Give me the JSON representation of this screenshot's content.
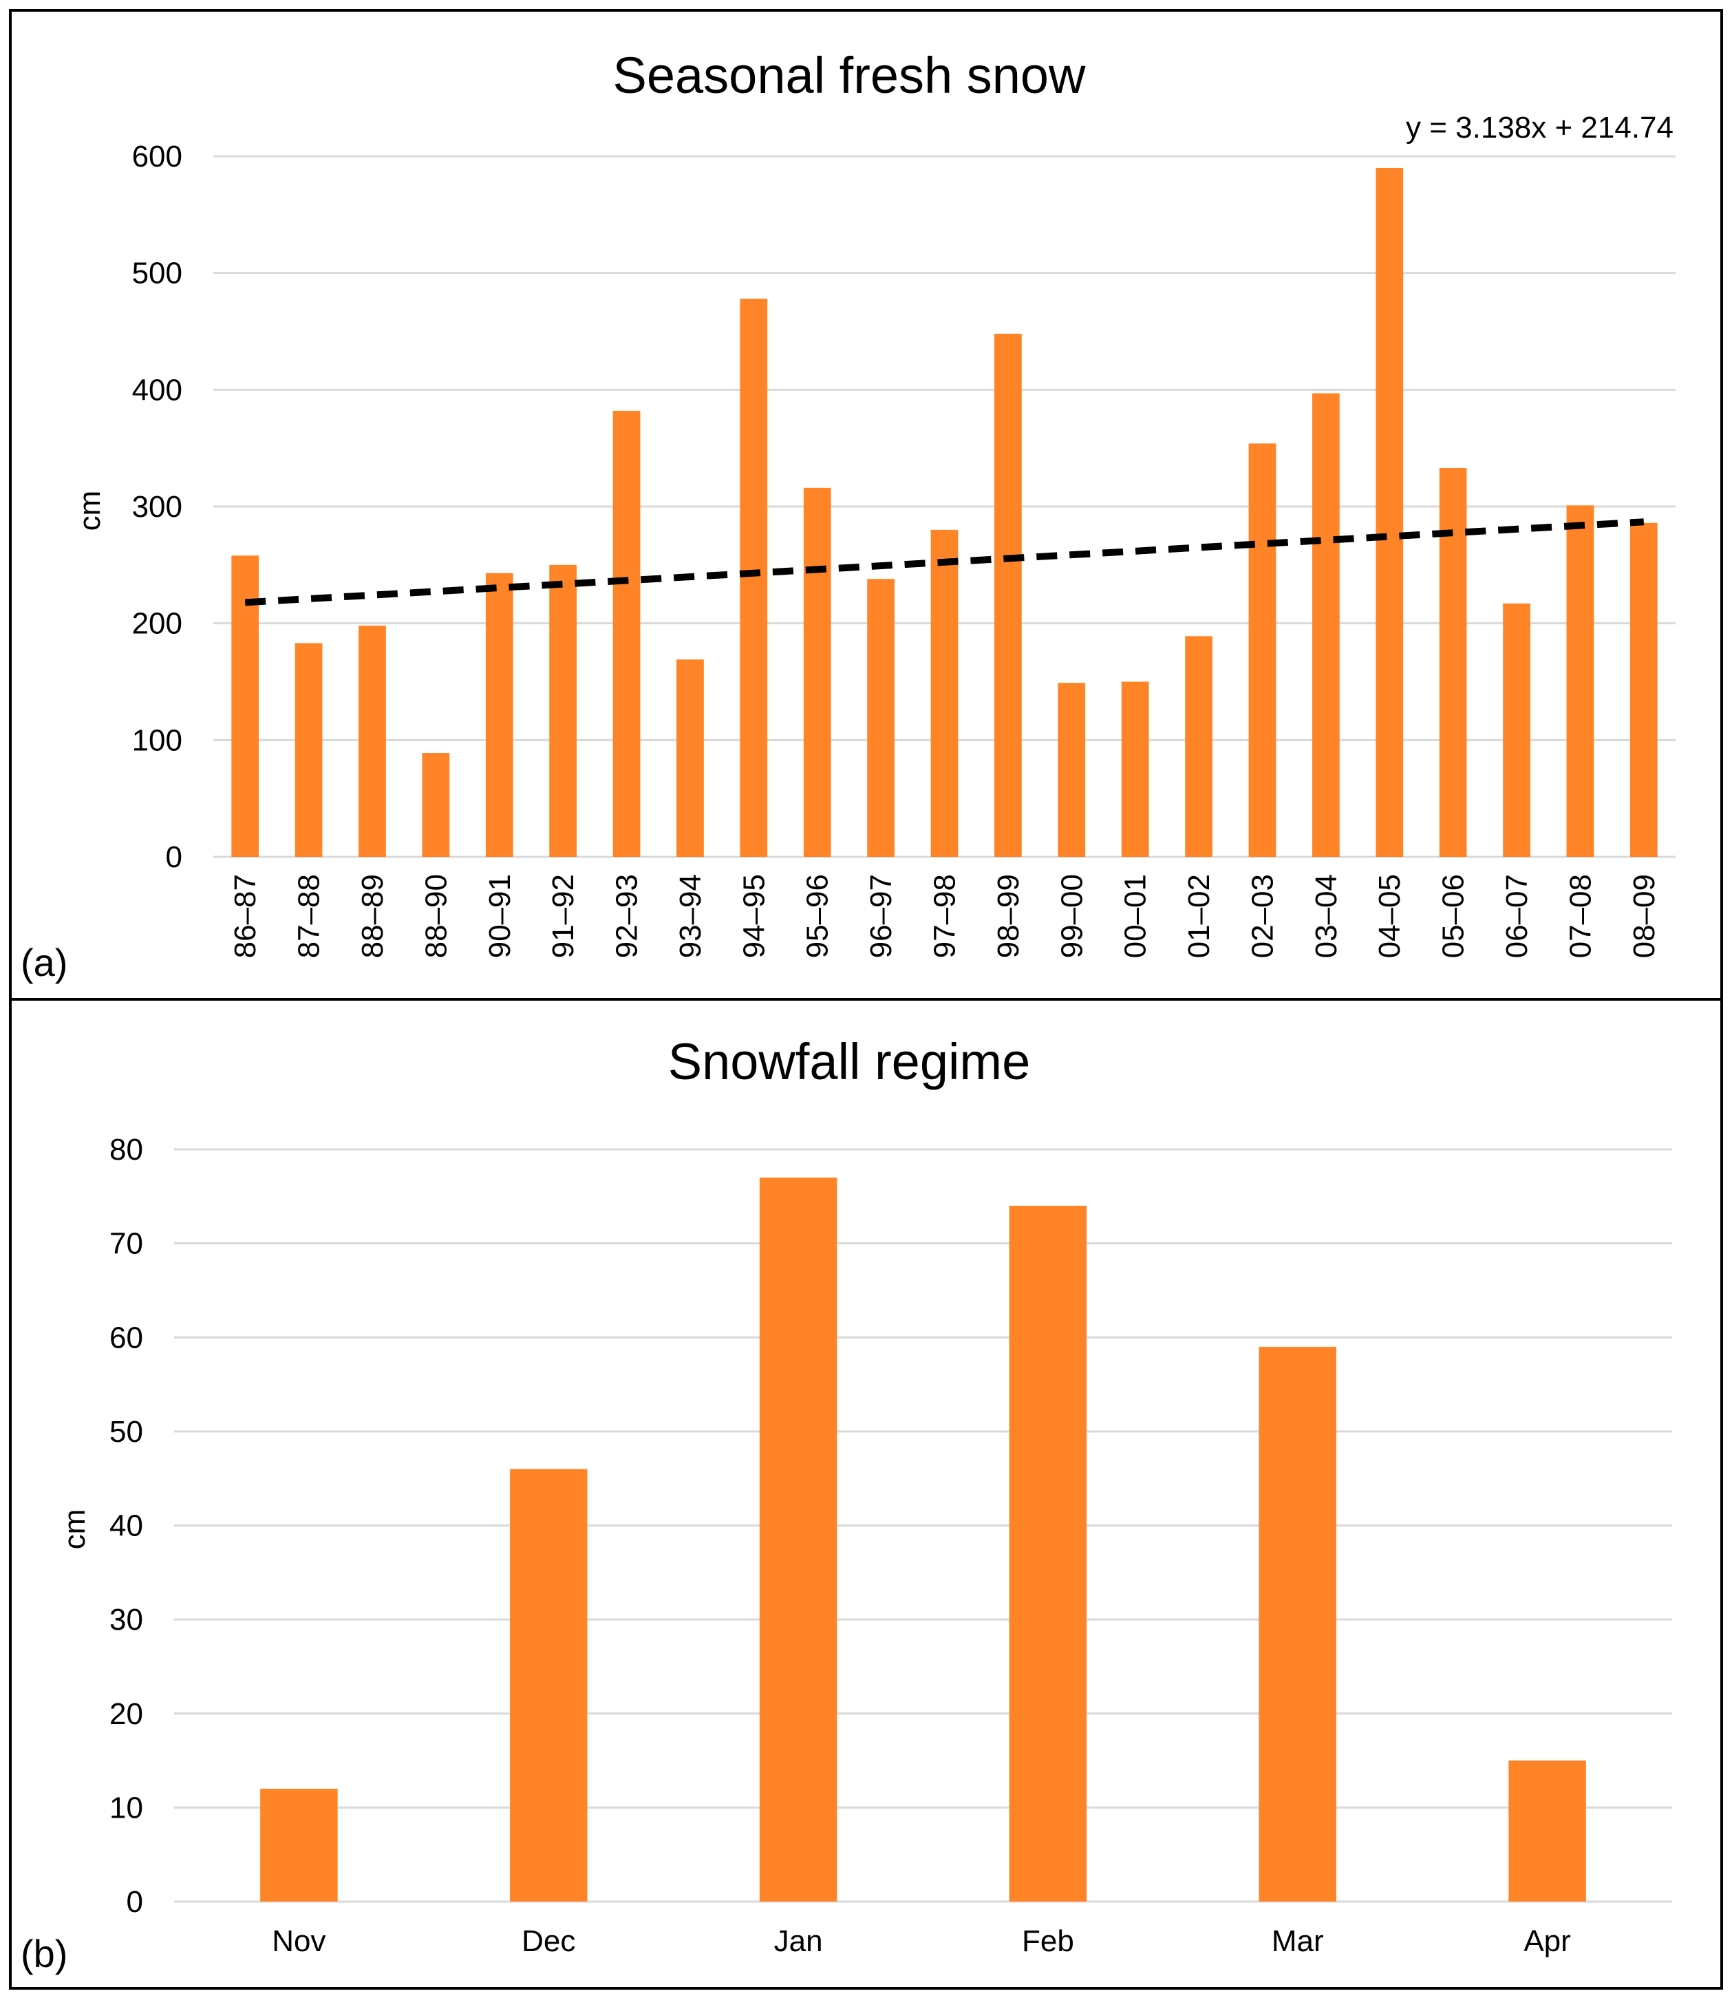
{
  "chart_data": [
    {
      "type": "bar",
      "panel_label": "(a)",
      "title": "Seasonal fresh snow",
      "xlabel": "",
      "ylabel": "cm",
      "ylim": [
        0,
        600
      ],
      "yticks": [
        0,
        100,
        200,
        300,
        400,
        500,
        600
      ],
      "grid": true,
      "categories": [
        "86–87",
        "87–88",
        "88–89",
        "88–90",
        "90–91",
        "91–92",
        "92–93",
        "93–94",
        "94–95",
        "95–96",
        "96–97",
        "97–98",
        "98–99",
        "99–00",
        "00–01",
        "01–02",
        "02–03",
        "03–04",
        "04–05",
        "05–06",
        "06–07",
        "07–08",
        "08–09"
      ],
      "values": [
        258,
        183,
        198,
        89,
        243,
        250,
        382,
        169,
        478,
        316,
        238,
        280,
        448,
        149,
        150,
        189,
        354,
        397,
        590,
        333,
        217,
        301,
        286
      ],
      "trendline": {
        "type": "linear",
        "slope": 3.138,
        "intercept": 214.74,
        "equation_label": "y = 3.138x + 214.74"
      },
      "colors": {
        "bar": "#ff8427",
        "trend": "#000000",
        "grid": "#d9d9d9"
      }
    },
    {
      "type": "bar",
      "panel_label": "(b)",
      "title": "Snowfall regime",
      "xlabel": "",
      "ylabel": "cm",
      "ylim": [
        0,
        80
      ],
      "yticks": [
        0,
        10,
        20,
        30,
        40,
        50,
        60,
        70,
        80
      ],
      "grid": true,
      "categories": [
        "Nov",
        "Dec",
        "Jan",
        "Feb",
        "Mar",
        "Apr"
      ],
      "values": [
        12,
        46,
        77,
        74,
        59,
        15
      ],
      "colors": {
        "bar": "#ff8427",
        "grid": "#d9d9d9"
      }
    }
  ]
}
